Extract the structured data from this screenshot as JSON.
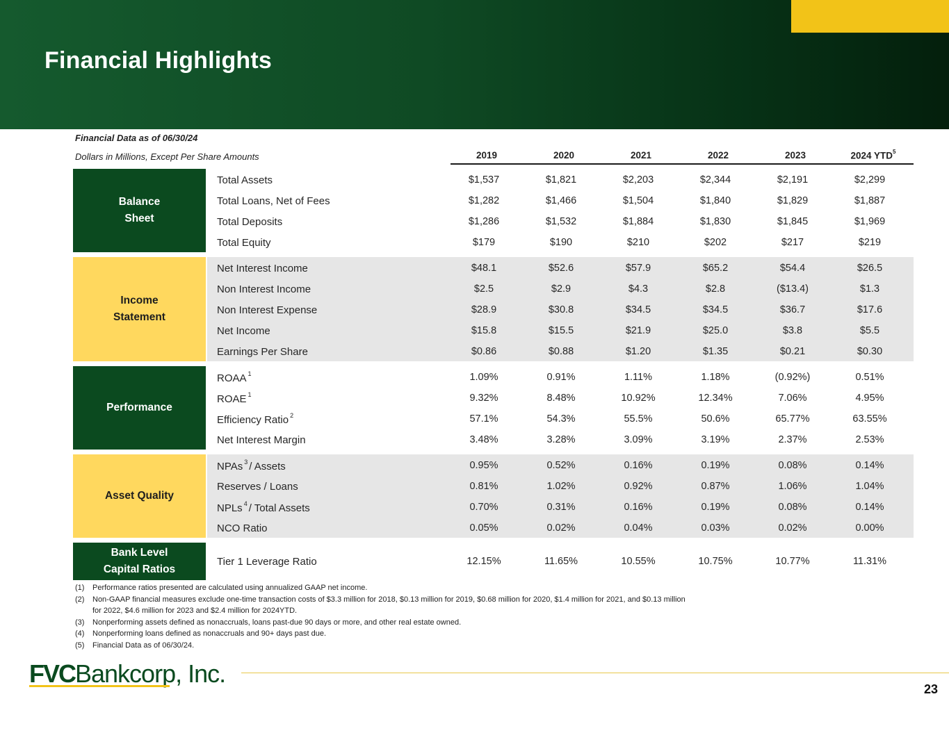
{
  "slide": {
    "title": "Financial Highlights",
    "page_number": "23"
  },
  "meta": {
    "as_of": "Financial Data as of 06/30/24",
    "units": "Dollars in Millions, Except Per Share Amounts"
  },
  "years": [
    {
      "label": "2019"
    },
    {
      "label": "2020"
    },
    {
      "label": "2021"
    },
    {
      "label": "2022"
    },
    {
      "label": "2023"
    },
    {
      "label": "2024 YTD",
      "sup": "5"
    }
  ],
  "sections": [
    {
      "name_lines": [
        "Balance",
        "Sheet"
      ],
      "rows": [
        {
          "label": "Total Assets",
          "values": [
            "$1,537",
            "$1,821",
            "$2,203",
            "$2,344",
            "$2,191",
            "$2,299"
          ]
        },
        {
          "label": "Total Loans, Net of Fees",
          "values": [
            "$1,282",
            "$1,466",
            "$1,504",
            "$1,840",
            "$1,829",
            "$1,887"
          ]
        },
        {
          "label": "Total Deposits",
          "values": [
            "$1,286",
            "$1,532",
            "$1,884",
            "$1,830",
            "$1,845",
            "$1,969"
          ]
        },
        {
          "label": "Total Equity",
          "values": [
            "$179",
            "$190",
            "$210",
            "$202",
            "$217",
            "$219"
          ]
        }
      ]
    },
    {
      "name_lines": [
        "Income",
        "Statement"
      ],
      "rows": [
        {
          "label": "Net Interest Income",
          "values": [
            "$48.1",
            "$52.6",
            "$57.9",
            "$65.2",
            "$54.4",
            "$26.5"
          ]
        },
        {
          "label": "Non Interest Income",
          "values": [
            "$2.5",
            "$2.9",
            "$4.3",
            "$2.8",
            "($13.4)",
            "$1.3"
          ]
        },
        {
          "label": "Non Interest Expense",
          "values": [
            "$28.9",
            "$30.8",
            "$34.5",
            "$34.5",
            "$36.7",
            "$17.6"
          ]
        },
        {
          "label": "Net Income",
          "values": [
            "$15.8",
            "$15.5",
            "$21.9",
            "$25.0",
            "$3.8",
            "$5.5"
          ]
        },
        {
          "label": "Earnings Per Share",
          "values": [
            "$0.86",
            "$0.88",
            "$1.20",
            "$1.35",
            "$0.21",
            "$0.30"
          ]
        }
      ]
    },
    {
      "name_lines": [
        "Performance"
      ],
      "rows": [
        {
          "label": "ROAA",
          "sup": "1",
          "label_after": "",
          "values": [
            "1.09%",
            "0.91%",
            "1.11%",
            "1.18%",
            "(0.92%)",
            "0.51%"
          ]
        },
        {
          "label": "ROAE",
          "sup": "1",
          "label_after": "",
          "values": [
            "9.32%",
            "8.48%",
            "10.92%",
            "12.34%",
            "7.06%",
            "4.95%"
          ]
        },
        {
          "label": "Efficiency Ratio",
          "sup": "2",
          "label_after": "",
          "values": [
            "57.1%",
            "54.3%",
            "55.5%",
            "50.6%",
            "65.77%",
            "63.55%"
          ]
        },
        {
          "label": "Net Interest Margin",
          "values": [
            "3.48%",
            "3.28%",
            "3.09%",
            "3.19%",
            "2.37%",
            "2.53%"
          ]
        }
      ]
    },
    {
      "name_lines": [
        "Asset Quality"
      ],
      "rows": [
        {
          "label": "NPAs",
          "sup": "3",
          "label_after": "/ Assets",
          "values": [
            "0.95%",
            "0.52%",
            "0.16%",
            "0.19%",
            "0.08%",
            "0.14%"
          ]
        },
        {
          "label": "Reserves / Loans",
          "values": [
            "0.81%",
            "1.02%",
            "0.92%",
            "0.87%",
            "1.06%",
            "1.04%"
          ]
        },
        {
          "label": "NPLs",
          "sup": "4",
          "label_after": "/ Total Assets",
          "values": [
            "0.70%",
            "0.31%",
            "0.16%",
            "0.19%",
            "0.08%",
            "0.14%"
          ]
        },
        {
          "label": "NCO Ratio",
          "values": [
            "0.05%",
            "0.02%",
            "0.04%",
            "0.03%",
            "0.02%",
            "0.00%"
          ]
        }
      ]
    },
    {
      "name_lines": [
        "Bank Level",
        "Capital Ratios"
      ],
      "rows": [
        {
          "label": "Tier 1 Leverage Ratio",
          "values": [
            "12.15%",
            "11.65%",
            "10.55%",
            "10.75%",
            "10.77%",
            "11.31%"
          ]
        }
      ]
    }
  ],
  "footnotes": [
    {
      "num": "(1)",
      "text": "Performance ratios presented are calculated using annualized GAAP net income."
    },
    {
      "num": "(2)",
      "text": "Non-GAAP financial measures exclude one-time transaction costs of $3.3 million for 2018, $0.13 million for 2019,  $0.68 million for 2020,  $1.4 million for 2021, and $0.13 million for 2022, $4.6 million for 2023 and $2.4 million for 2024YTD."
    },
    {
      "num": "(3)",
      "text": "Nonperforming assets defined as nonaccruals, loans past-due 90 days or more, and other real estate owned."
    },
    {
      "num": "(4)",
      "text": "Nonperforming loans defined as nonaccruals and 90+ days past due."
    },
    {
      "num": "(5)",
      "text": "Financial Data as of 06/30/24."
    }
  ],
  "logo": {
    "bold_part": "FVC",
    "rest": "Bankcorp, Inc."
  }
}
